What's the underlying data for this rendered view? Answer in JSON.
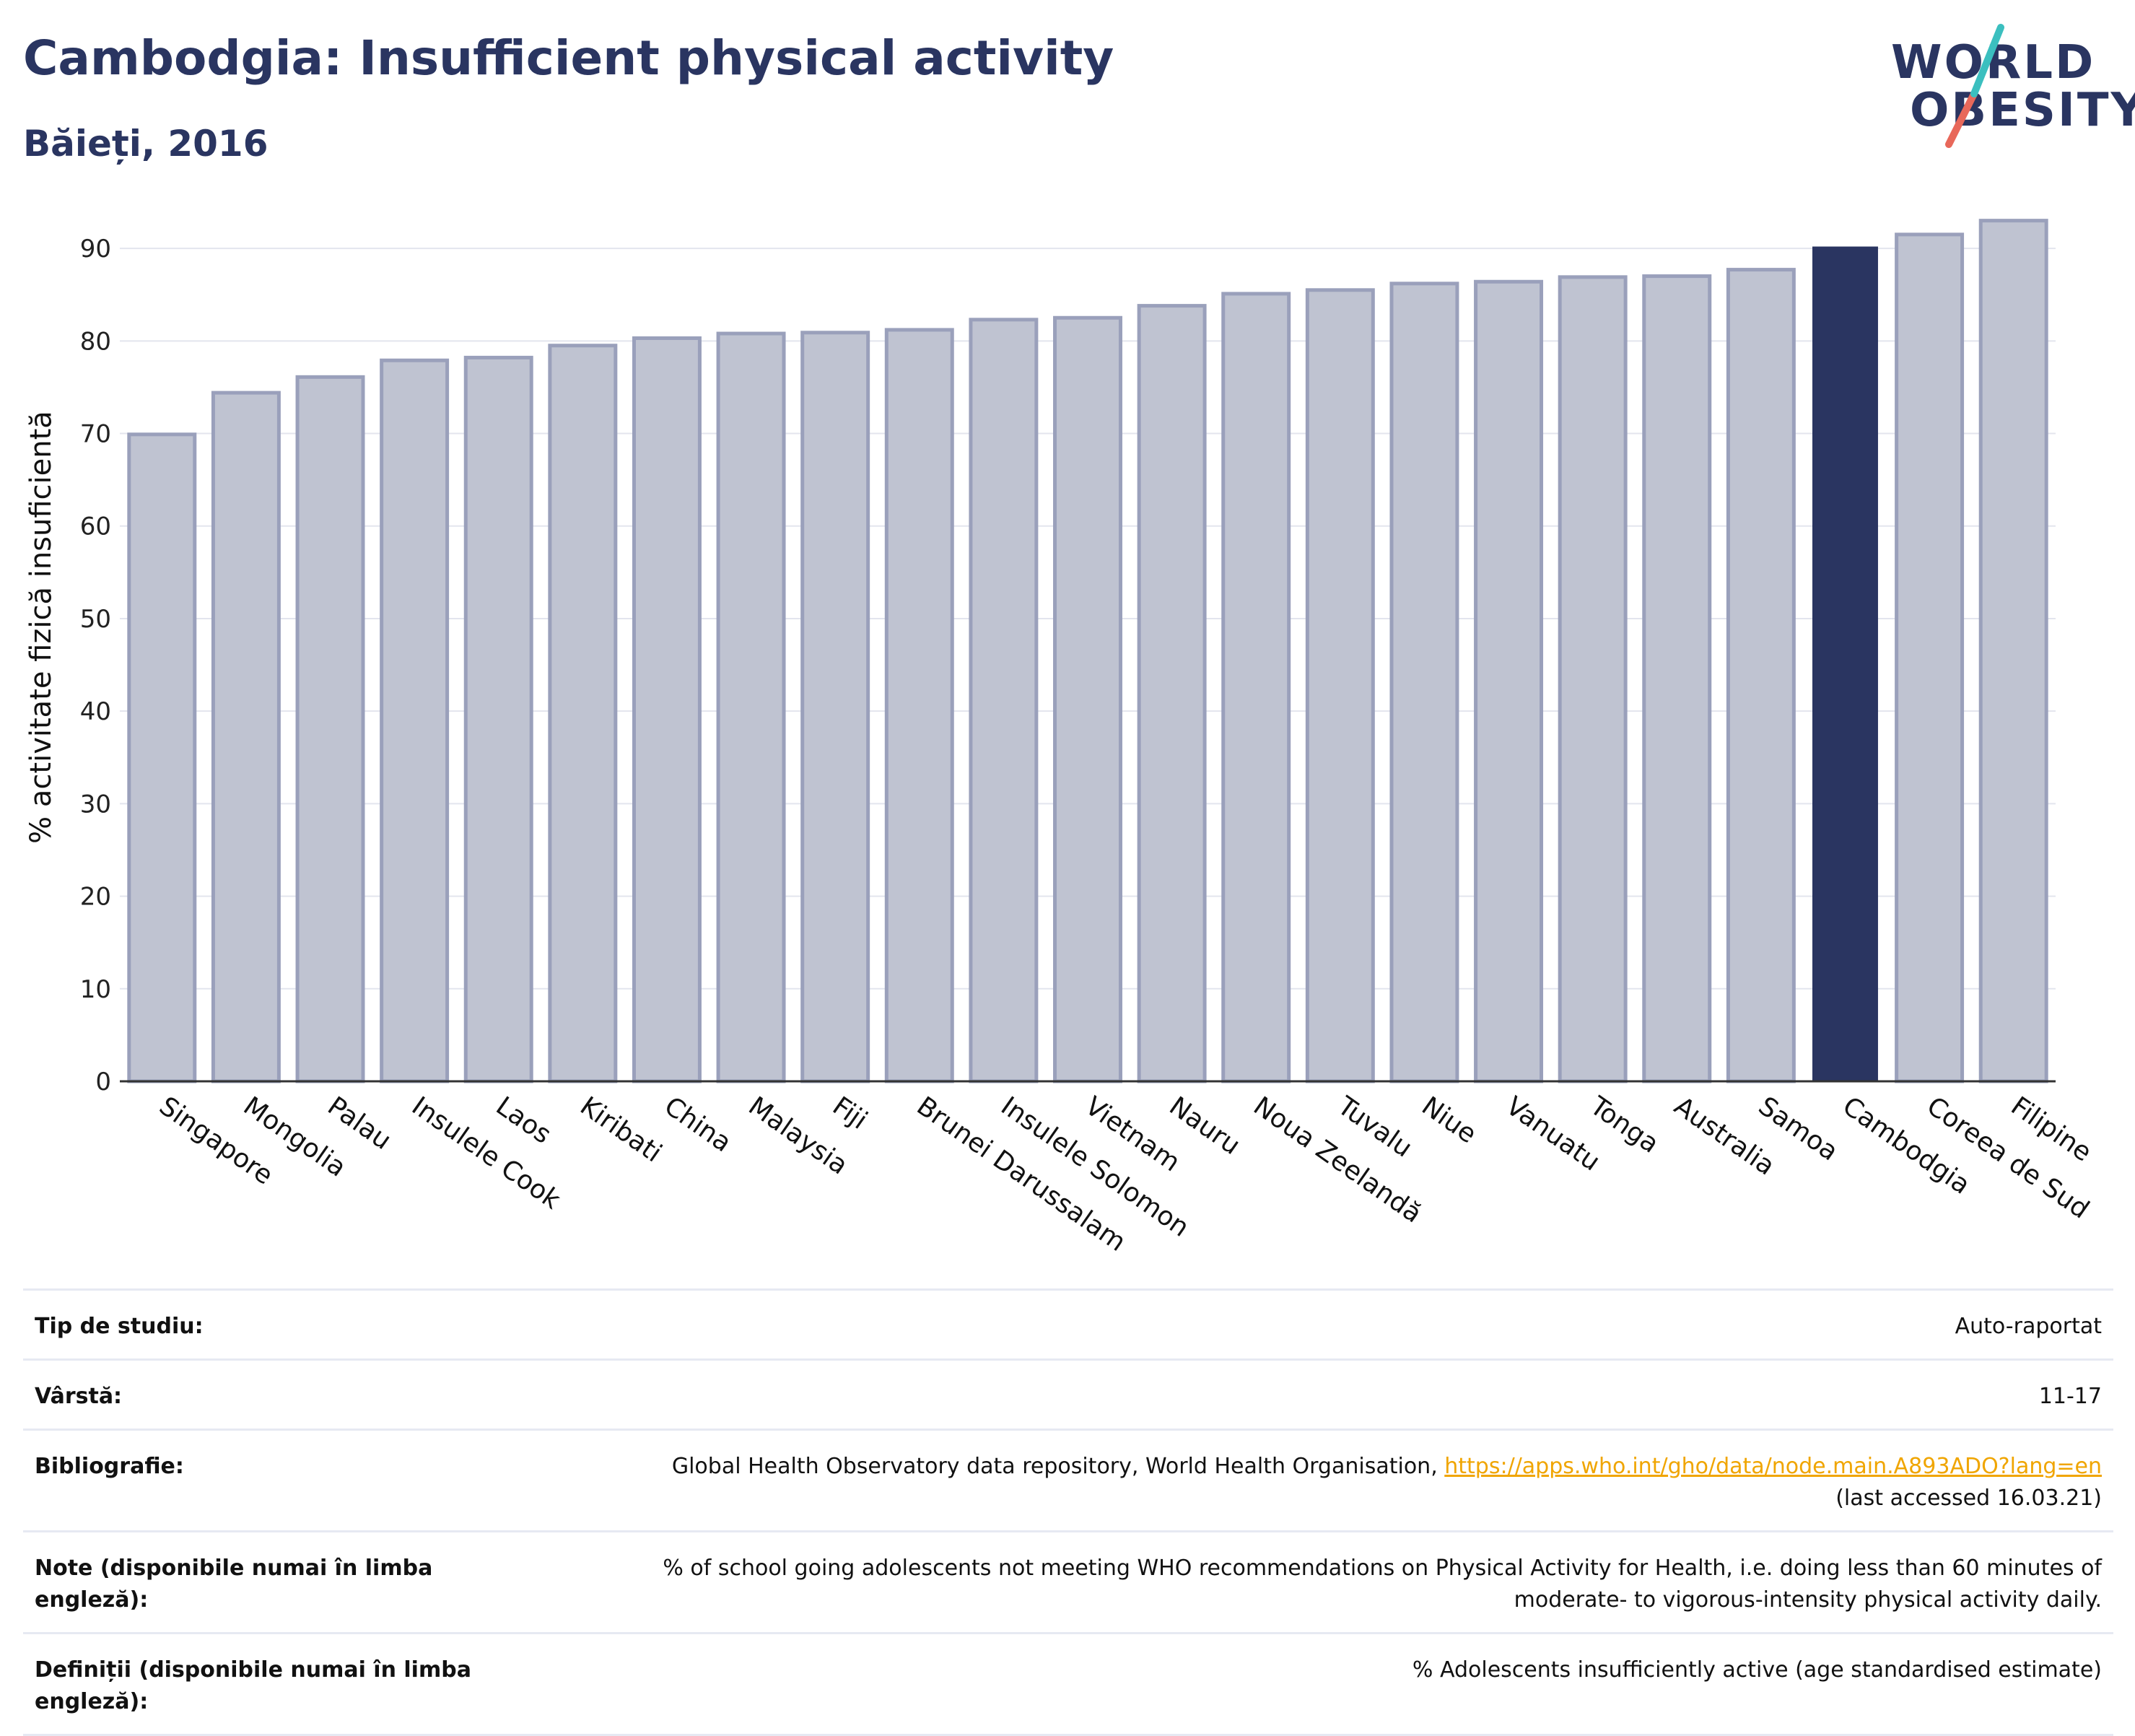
{
  "header": {
    "title": "Cambodgia: Insufficient physical activity",
    "subtitle": "Băieți, 2016"
  },
  "logo": {
    "line1": "WORLD",
    "line2": "OBESITY",
    "colors": {
      "text": "#2a3561",
      "slash_teal": "#3bbfbf",
      "slash_red": "#e8685a"
    }
  },
  "chart_data": {
    "type": "bar",
    "ylabel": "% activitate fizică insuficientă",
    "xlabel": "",
    "ylim": [
      0,
      95
    ],
    "yticks": [
      0,
      10,
      20,
      30,
      40,
      50,
      60,
      70,
      80,
      90
    ],
    "grid": true,
    "highlight": "Cambodgia",
    "colors": {
      "bar": "#bfc3d1",
      "bar_edge": "#9aa0bb",
      "highlight": "#2a3561",
      "grid": "#e3e5ee",
      "axis": "#333333"
    },
    "categories": [
      "Singapore",
      "Mongolia",
      "Palau",
      "Insulele Cook",
      "Laos",
      "Kiribati",
      "China",
      "Malaysia",
      "Fiji",
      "Brunei Darussalam",
      "Insulele Solomon",
      "Vietnam",
      "Nauru",
      "Noua Zeelandă",
      "Tuvalu",
      "Niue",
      "Vanuatu",
      "Tonga",
      "Australia",
      "Samoa",
      "Cambodgia",
      "Coreea de Sud",
      "Filipine"
    ],
    "values": [
      69.9,
      74.4,
      76.1,
      77.9,
      78.2,
      79.5,
      80.3,
      80.8,
      80.9,
      81.2,
      82.3,
      82.5,
      83.8,
      85.1,
      85.5,
      86.2,
      86.4,
      86.9,
      87.0,
      87.7,
      90.2,
      91.5,
      93.0
    ]
  },
  "meta": {
    "rows": [
      {
        "label": "Tip de studiu:",
        "value": "Auto-raportat"
      },
      {
        "label": "Vârstă:",
        "value": "11-17"
      },
      {
        "label": "Bibliografie:",
        "value": "Global Health Observatory data repository, World Health Organisation, ",
        "link": "https://apps.who.int/gho/data/node.main.A893ADO?lang=en",
        "value2": "(last accessed 16.03.21)"
      },
      {
        "label": "Note (disponibile numai în limba engleză):",
        "value": "% of school going adolescents not meeting WHO recommendations on Physical Activity for Health, i.e. doing less than 60 minutes of",
        "value2": "moderate- to vigorous-intensity physical activity daily."
      },
      {
        "label": "Definiții (disponibile numai în limba engleză):",
        "value": "% Adolescents insufficiently active (age standardised estimate)"
      }
    ]
  }
}
